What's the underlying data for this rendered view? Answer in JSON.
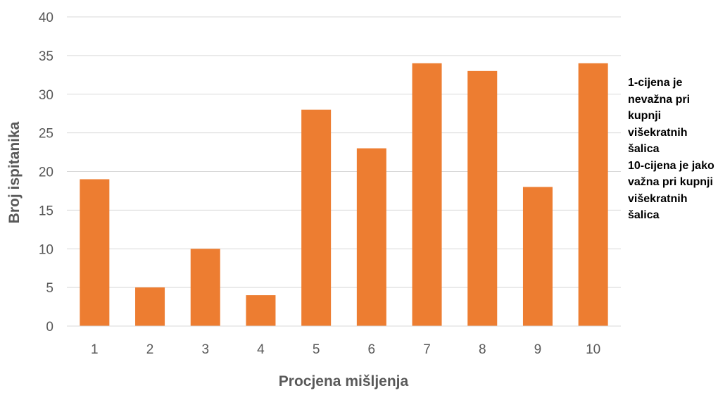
{
  "chart_data": {
    "type": "bar",
    "categories": [
      "1",
      "2",
      "3",
      "4",
      "5",
      "6",
      "7",
      "8",
      "9",
      "10"
    ],
    "values": [
      19,
      5,
      10,
      4,
      28,
      23,
      34,
      33,
      18,
      34
    ],
    "xlabel": "Procjena mišljenja",
    "ylabel": "Broj ispitanika",
    "ylim": [
      0,
      40
    ],
    "yticks": [
      "0",
      "5",
      "10",
      "15",
      "20",
      "25",
      "30",
      "35",
      "40"
    ],
    "grid": true,
    "bar_color": "#ED7D31",
    "grid_color": "#D9D9D9",
    "annotation": {
      "line_1": "1-cijena je nevažna pri kupnji višekratnih šalica",
      "line_2": "10-cijena je jako važna pri kupnji višekratnih šalica"
    }
  }
}
